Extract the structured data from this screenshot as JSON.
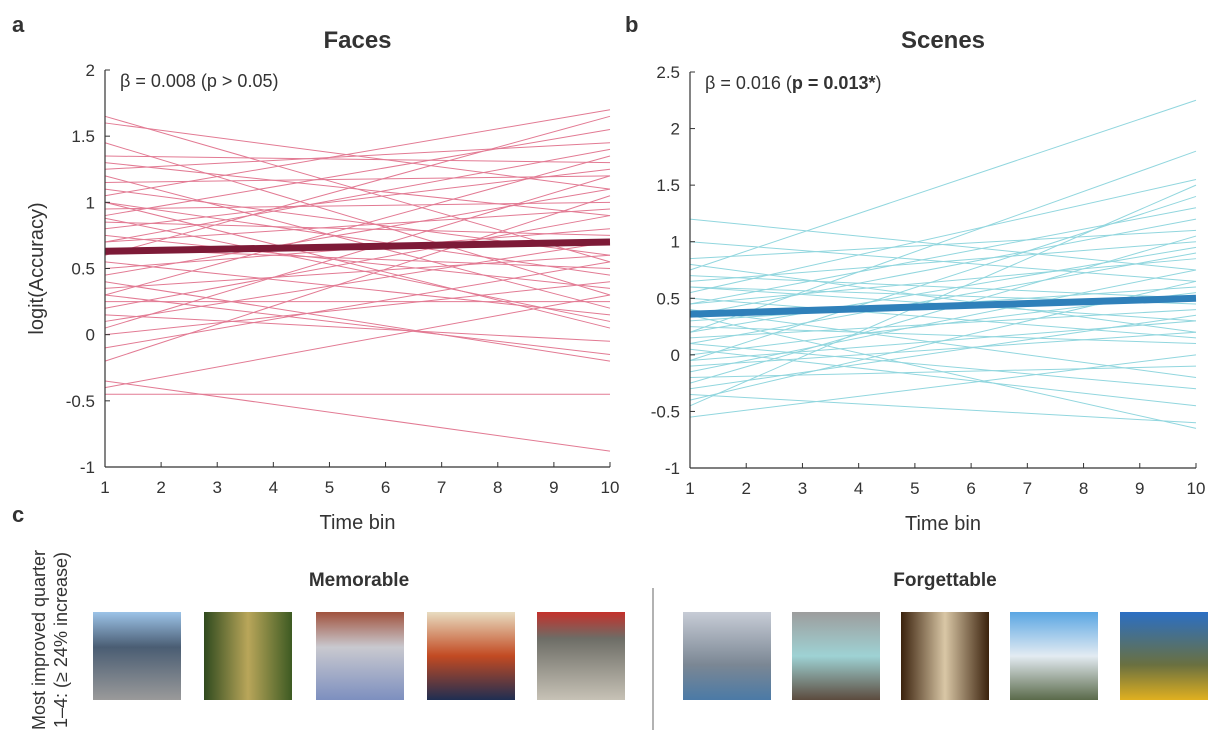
{
  "panel_labels": [
    "a",
    "b",
    "c"
  ],
  "chart_data": [
    {
      "type": "line",
      "title": "Faces",
      "annotation": {
        "text": "β = 0.008 (p > 0.05)"
      },
      "xlabel": "Time bin",
      "ylabel": "logit(Accuracy)",
      "x": [
        1,
        10
      ],
      "xlim": [
        1,
        10
      ],
      "xticks": [
        1,
        2,
        3,
        4,
        5,
        6,
        7,
        8,
        9,
        10
      ],
      "ylim": [
        -1,
        2
      ],
      "yticks": [
        -1,
        -0.5,
        0,
        0.5,
        1,
        1.5,
        2
      ],
      "series": [
        {
          "color": "#e27a93",
          "values": [
            1.65,
            0.55
          ]
        },
        {
          "color": "#e27a93",
          "values": [
            1.6,
            1.1
          ]
        },
        {
          "color": "#e27a93",
          "values": [
            1.45,
            0.3
          ]
        },
        {
          "color": "#e27a93",
          "values": [
            1.35,
            1.3
          ]
        },
        {
          "color": "#e27a93",
          "values": [
            1.3,
            0.9
          ]
        },
        {
          "color": "#e27a93",
          "values": [
            1.25,
            1.45
          ]
        },
        {
          "color": "#e27a93",
          "values": [
            1.2,
            0.2
          ]
        },
        {
          "color": "#e27a93",
          "values": [
            1.15,
            1.2
          ]
        },
        {
          "color": "#e27a93",
          "values": [
            1.1,
            0.6
          ]
        },
        {
          "color": "#e27a93",
          "values": [
            1.05,
            1.7
          ]
        },
        {
          "color": "#e27a93",
          "values": [
            1.0,
            0.45
          ]
        },
        {
          "color": "#e27a93",
          "values": [
            0.95,
            1.0
          ]
        },
        {
          "color": "#e27a93",
          "values": [
            0.9,
            1.55
          ]
        },
        {
          "color": "#e27a93",
          "values": [
            0.88,
            0.1
          ]
        },
        {
          "color": "#e27a93",
          "values": [
            0.85,
            0.75
          ]
        },
        {
          "color": "#e27a93",
          "values": [
            0.8,
            1.25
          ]
        },
        {
          "color": "#e27a93",
          "values": [
            0.75,
            0.35
          ]
        },
        {
          "color": "#e27a93",
          "values": [
            0.7,
            0.95
          ]
        },
        {
          "color": "#e27a93",
          "values": [
            0.65,
            0.5
          ]
        },
        {
          "color": "#e27a93",
          "values": [
            0.6,
            1.65
          ]
        },
        {
          "color": "#e27a93",
          "values": [
            0.55,
            0.15
          ]
        },
        {
          "color": "#e27a93",
          "values": [
            0.5,
            0.8
          ]
        },
        {
          "color": "#e27a93",
          "values": [
            0.45,
            1.1
          ]
        },
        {
          "color": "#e27a93",
          "values": [
            0.4,
            -0.2
          ]
        },
        {
          "color": "#e27a93",
          "values": [
            0.35,
            0.6
          ]
        },
        {
          "color": "#e27a93",
          "values": [
            0.3,
            1.35
          ]
        },
        {
          "color": "#e27a93",
          "values": [
            0.25,
            0.25
          ]
        },
        {
          "color": "#e27a93",
          "values": [
            0.2,
            0.9
          ]
        },
        {
          "color": "#e27a93",
          "values": [
            0.15,
            -0.05
          ]
        },
        {
          "color": "#e27a93",
          "values": [
            0.1,
            0.7
          ]
        },
        {
          "color": "#e27a93",
          "values": [
            0.05,
            1.2
          ]
        },
        {
          "color": "#e27a93",
          "values": [
            0.0,
            0.4
          ]
        },
        {
          "color": "#e27a93",
          "values": [
            -0.1,
            0.55
          ]
        },
        {
          "color": "#e27a93",
          "values": [
            -0.2,
            1.05
          ]
        },
        {
          "color": "#e27a93",
          "values": [
            -0.35,
            -0.88
          ]
        },
        {
          "color": "#e27a93",
          "values": [
            -0.4,
            0.3
          ]
        },
        {
          "color": "#e27a93",
          "values": [
            -0.45,
            -0.45
          ]
        },
        {
          "color": "#e27a93",
          "values": [
            0.3,
            -0.15
          ]
        },
        {
          "color": "#e27a93",
          "values": [
            1.0,
            0.05
          ]
        },
        {
          "color": "#e27a93",
          "values": [
            0.7,
            1.4
          ]
        },
        {
          "color": "#7d1a37",
          "values": [
            0.63,
            0.7
          ],
          "width": 7
        }
      ]
    },
    {
      "type": "line",
      "title": "Scenes",
      "annotation": {
        "text": "β = 0.016 (",
        "bold": "p = 0.013*",
        "end": ")"
      },
      "xlabel": "Time bin",
      "x": [
        1,
        10
      ],
      "xlim": [
        1,
        10
      ],
      "xticks": [
        1,
        2,
        3,
        4,
        5,
        6,
        7,
        8,
        9,
        10
      ],
      "ylim": [
        -1,
        2.5
      ],
      "yticks": [
        -1,
        -0.5,
        0,
        0.5,
        1,
        1.5,
        2,
        2.5
      ],
      "series": [
        {
          "color": "#91d6de",
          "values": [
            1.2,
            0.75
          ]
        },
        {
          "color": "#91d6de",
          "values": [
            1.0,
            0.65
          ]
        },
        {
          "color": "#91d6de",
          "values": [
            0.85,
            1.1
          ]
        },
        {
          "color": "#91d6de",
          "values": [
            0.8,
            0.2
          ]
        },
        {
          "color": "#91d6de",
          "values": [
            0.75,
            2.25
          ]
        },
        {
          "color": "#91d6de",
          "values": [
            0.7,
            0.5
          ]
        },
        {
          "color": "#91d6de",
          "values": [
            0.65,
            1.0
          ]
        },
        {
          "color": "#91d6de",
          "values": [
            0.6,
            0.3
          ]
        },
        {
          "color": "#91d6de",
          "values": [
            0.55,
            1.55
          ]
        },
        {
          "color": "#91d6de",
          "values": [
            0.5,
            0.15
          ]
        },
        {
          "color": "#91d6de",
          "values": [
            0.45,
            0.85
          ]
        },
        {
          "color": "#91d6de",
          "values": [
            0.4,
            -0.2
          ]
        },
        {
          "color": "#91d6de",
          "values": [
            0.35,
            1.2
          ]
        },
        {
          "color": "#91d6de",
          "values": [
            0.3,
            0.6
          ]
        },
        {
          "color": "#91d6de",
          "values": [
            0.25,
            0.1
          ]
        },
        {
          "color": "#91d6de",
          "values": [
            0.2,
            1.8
          ]
        },
        {
          "color": "#91d6de",
          "values": [
            0.15,
            0.4
          ]
        },
        {
          "color": "#91d6de",
          "values": [
            0.1,
            0.9
          ]
        },
        {
          "color": "#91d6de",
          "values": [
            0.05,
            -0.45
          ]
        },
        {
          "color": "#91d6de",
          "values": [
            0.0,
            0.55
          ]
        },
        {
          "color": "#91d6de",
          "values": [
            -0.05,
            1.4
          ]
        },
        {
          "color": "#91d6de",
          "values": [
            -0.1,
            0.2
          ]
        },
        {
          "color": "#91d6de",
          "values": [
            -0.15,
            0.75
          ]
        },
        {
          "color": "#91d6de",
          "values": [
            -0.2,
            -0.1
          ]
        },
        {
          "color": "#91d6de",
          "values": [
            -0.25,
            1.05
          ]
        },
        {
          "color": "#91d6de",
          "values": [
            -0.3,
            0.35
          ]
        },
        {
          "color": "#91d6de",
          "values": [
            -0.35,
            -0.6
          ]
        },
        {
          "color": "#91d6de",
          "values": [
            -0.4,
            0.65
          ]
        },
        {
          "color": "#91d6de",
          "values": [
            -0.45,
            1.5
          ]
        },
        {
          "color": "#91d6de",
          "values": [
            -0.55,
            0.0
          ]
        },
        {
          "color": "#91d6de",
          "values": [
            0.35,
            -0.65
          ]
        },
        {
          "color": "#91d6de",
          "values": [
            0.6,
            0.45
          ]
        },
        {
          "color": "#91d6de",
          "values": [
            0.2,
            0.95
          ]
        },
        {
          "color": "#91d6de",
          "values": [
            -0.05,
            0.3
          ]
        },
        {
          "color": "#91d6de",
          "values": [
            0.45,
            1.3
          ]
        },
        {
          "color": "#91d6de",
          "values": [
            0.1,
            -0.3
          ]
        },
        {
          "color": "#2f80ba",
          "values": [
            0.36,
            0.5
          ],
          "width": 7
        }
      ]
    }
  ],
  "panel_c": {
    "ylabel": [
      "Most improved quarter",
      "1–4: (≥ 24% increase)"
    ],
    "groups": [
      "Memorable",
      "Forgettable"
    ]
  }
}
